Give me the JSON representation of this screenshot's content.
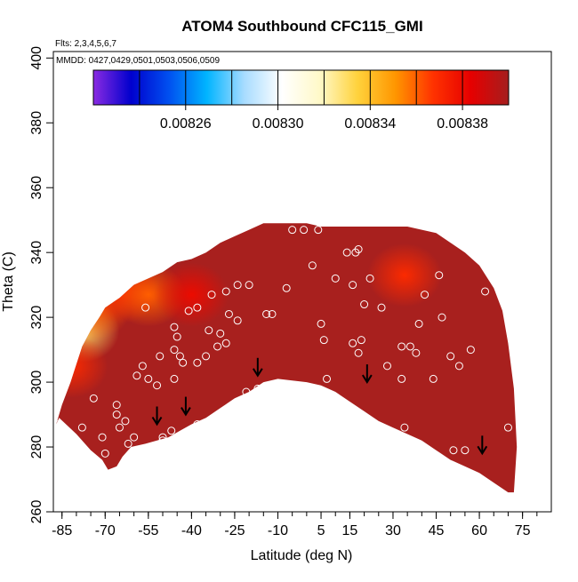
{
  "chart_data": {
    "type": "heatmap",
    "title": "ATOM4 Southbound CFC115_GMI",
    "subtitle_flights": "Flts: 2,3,4,5,6,7",
    "subtitle_dates": "MMDD: 0427,0429,0501,0503,0506,0509",
    "xlabel": "Latitude (deg N)",
    "ylabel": "Theta (C)",
    "xlim": [
      -88,
      85
    ],
    "ylim": [
      260,
      402
    ],
    "x_ticks": [
      -85,
      -70,
      -55,
      -40,
      -25,
      -10,
      5,
      15,
      30,
      45,
      60,
      75
    ],
    "x_tick_labels": [
      "-85",
      "-70",
      "-55",
      "-40",
      "-25",
      "-10",
      "5",
      "15",
      "30",
      "45",
      "60",
      "75"
    ],
    "y_ticks": [
      260,
      280,
      300,
      320,
      340,
      360,
      380,
      400
    ],
    "y_tick_labels": [
      "260",
      "280",
      "300",
      "320",
      "340",
      "360",
      "380",
      "400"
    ],
    "colorbar": {
      "range": [
        0.00822,
        0.0084
      ],
      "tick_values": [
        0.00826,
        0.0083,
        0.00834,
        0.00838
      ],
      "tick_labels": [
        "0.00826",
        "0.00830",
        "0.00834",
        "0.00838"
      ],
      "colors": [
        "#8a2be2",
        "#0000cd",
        "#0050f0",
        "#00b4ff",
        "#a8dcff",
        "#ffffff",
        "#fff9c8",
        "#ffd23c",
        "#ff9600",
        "#ff3200",
        "#e60000",
        "#a51e1e"
      ]
    },
    "field": {
      "base_color": "#a8201e",
      "outline_latitude": [
        -87,
        -86,
        -80,
        -75,
        -71,
        -69,
        -66,
        -64,
        -61,
        -56,
        -52,
        -48,
        -44,
        -40,
        -35,
        -30,
        -25,
        -20,
        -15,
        -10,
        -5,
        0,
        5,
        10,
        15,
        20,
        25,
        30,
        35,
        40,
        45,
        50,
        55,
        60,
        65,
        70,
        72,
        73,
        72,
        70,
        68,
        65,
        60,
        55,
        50,
        45,
        40,
        35,
        30,
        25,
        20,
        15,
        10,
        5,
        0,
        -5,
        -10,
        -15,
        -20,
        -25,
        -30,
        -35,
        -40,
        -45,
        -50,
        -55,
        -60,
        -65,
        -70,
        -72,
        -75,
        -78,
        -82,
        -85
      ],
      "outline_theta": [
        287,
        289,
        284,
        279,
        276,
        273,
        274,
        277,
        280,
        281,
        282,
        283,
        285,
        287,
        289,
        292,
        295,
        297,
        300,
        301,
        300.5,
        300,
        299,
        297,
        294,
        291,
        288,
        286,
        284,
        282,
        279,
        276,
        274,
        272,
        269,
        266,
        266,
        280,
        298,
        312,
        322,
        329,
        336,
        340,
        343,
        346,
        347,
        348,
        348,
        348,
        348,
        348,
        348,
        348,
        349,
        349,
        349,
        349,
        347,
        345,
        343,
        340,
        338,
        337,
        334,
        332,
        330,
        326,
        323,
        320,
        316,
        311,
        300,
        293
      ],
      "hot_spots": [
        {
          "lat": -78,
          "theta": 316,
          "value": 0.00833
        },
        {
          "lat": -74,
          "theta": 323,
          "value": 0.00836
        },
        {
          "lat": -82,
          "theta": 305,
          "value": 0.00837
        },
        {
          "lat": -64,
          "theta": 328,
          "value": 0.00837
        },
        {
          "lat": -55,
          "theta": 327,
          "value": 0.00836
        },
        {
          "lat": -40,
          "theta": 327,
          "value": 0.00838
        },
        {
          "lat": 34,
          "theta": 333,
          "value": 0.00837
        }
      ]
    },
    "samples": [
      {
        "lat": -87,
        "theta": 287
      },
      {
        "lat": -78,
        "theta": 286
      },
      {
        "lat": -74,
        "theta": 295
      },
      {
        "lat": -71,
        "theta": 283
      },
      {
        "lat": -70,
        "theta": 278
      },
      {
        "lat": -72,
        "theta": 274
      },
      {
        "lat": -70,
        "theta": 270
      },
      {
        "lat": -66,
        "theta": 293
      },
      {
        "lat": -66,
        "theta": 290
      },
      {
        "lat": -65,
        "theta": 286
      },
      {
        "lat": -63,
        "theta": 288
      },
      {
        "lat": -62,
        "theta": 281
      },
      {
        "lat": -62,
        "theta": 277
      },
      {
        "lat": -60,
        "theta": 283
      },
      {
        "lat": -59,
        "theta": 302
      },
      {
        "lat": -57,
        "theta": 305
      },
      {
        "lat": -55,
        "theta": 301
      },
      {
        "lat": -52,
        "theta": 299
      },
      {
        "lat": -50,
        "theta": 283
      },
      {
        "lat": -50,
        "theta": 282
      },
      {
        "lat": -47,
        "theta": 285
      },
      {
        "lat": -46,
        "theta": 301
      },
      {
        "lat": -51,
        "theta": 308
      },
      {
        "lat": -46,
        "theta": 310
      },
      {
        "lat": -45,
        "theta": 314
      },
      {
        "lat": -46,
        "theta": 317
      },
      {
        "lat": -41,
        "theta": 322
      },
      {
        "lat": -38,
        "theta": 323
      },
      {
        "lat": -44,
        "theta": 308
      },
      {
        "lat": -43,
        "theta": 306
      },
      {
        "lat": -38,
        "theta": 306
      },
      {
        "lat": -38,
        "theta": 287
      },
      {
        "lat": -32,
        "theta": 289
      },
      {
        "lat": -31,
        "theta": 311
      },
      {
        "lat": -28,
        "theta": 312
      },
      {
        "lat": -30,
        "theta": 315
      },
      {
        "lat": -34,
        "theta": 316
      },
      {
        "lat": -33,
        "theta": 327
      },
      {
        "lat": -28,
        "theta": 328
      },
      {
        "lat": -27,
        "theta": 321
      },
      {
        "lat": -24,
        "theta": 319
      },
      {
        "lat": -24,
        "theta": 330
      },
      {
        "lat": -20,
        "theta": 330
      },
      {
        "lat": -21,
        "theta": 297
      },
      {
        "lat": -17,
        "theta": 298
      },
      {
        "lat": -14,
        "theta": 321
      },
      {
        "lat": -12,
        "theta": 321
      },
      {
        "lat": -7,
        "theta": 329
      },
      {
        "lat": -5,
        "theta": 347
      },
      {
        "lat": -1,
        "theta": 347
      },
      {
        "lat": 4,
        "theta": 347
      },
      {
        "lat": 2,
        "theta": 336
      },
      {
        "lat": 5,
        "theta": 318
      },
      {
        "lat": 6,
        "theta": 313
      },
      {
        "lat": 10,
        "theta": 332
      },
      {
        "lat": 14,
        "theta": 340
      },
      {
        "lat": 17,
        "theta": 340
      },
      {
        "lat": 18,
        "theta": 341
      },
      {
        "lat": 16,
        "theta": 330
      },
      {
        "lat": 20,
        "theta": 324
      },
      {
        "lat": 16,
        "theta": 312
      },
      {
        "lat": 19,
        "theta": 313
      },
      {
        "lat": 18,
        "theta": 309
      },
      {
        "lat": 22,
        "theta": 332
      },
      {
        "lat": 26,
        "theta": 323
      },
      {
        "lat": 28,
        "theta": 305
      },
      {
        "lat": 33,
        "theta": 301
      },
      {
        "lat": 34,
        "theta": 286
      },
      {
        "lat": 33,
        "theta": 311
      },
      {
        "lat": 36,
        "theta": 311
      },
      {
        "lat": 38,
        "theta": 309
      },
      {
        "lat": 39,
        "theta": 318
      },
      {
        "lat": 41,
        "theta": 327
      },
      {
        "lat": 44,
        "theta": 301
      },
      {
        "lat": 46,
        "theta": 333
      },
      {
        "lat": 47,
        "theta": 320
      },
      {
        "lat": 50,
        "theta": 308
      },
      {
        "lat": 51,
        "theta": 279
      },
      {
        "lat": 53,
        "theta": 305
      },
      {
        "lat": 55,
        "theta": 279
      },
      {
        "lat": 57,
        "theta": 310
      },
      {
        "lat": 62,
        "theta": 328
      },
      {
        "lat": 70,
        "theta": 286
      },
      {
        "lat": 7,
        "theta": 301
      },
      {
        "lat": -35,
        "theta": 308
      },
      {
        "lat": -56,
        "theta": 323
      }
    ],
    "arrows": [
      {
        "lat": -52,
        "theta": 287
      },
      {
        "lat": -42,
        "theta": 290
      },
      {
        "lat": -17,
        "theta": 302
      },
      {
        "lat": 21,
        "theta": 300
      },
      {
        "lat": 61,
        "theta": 278
      }
    ]
  }
}
